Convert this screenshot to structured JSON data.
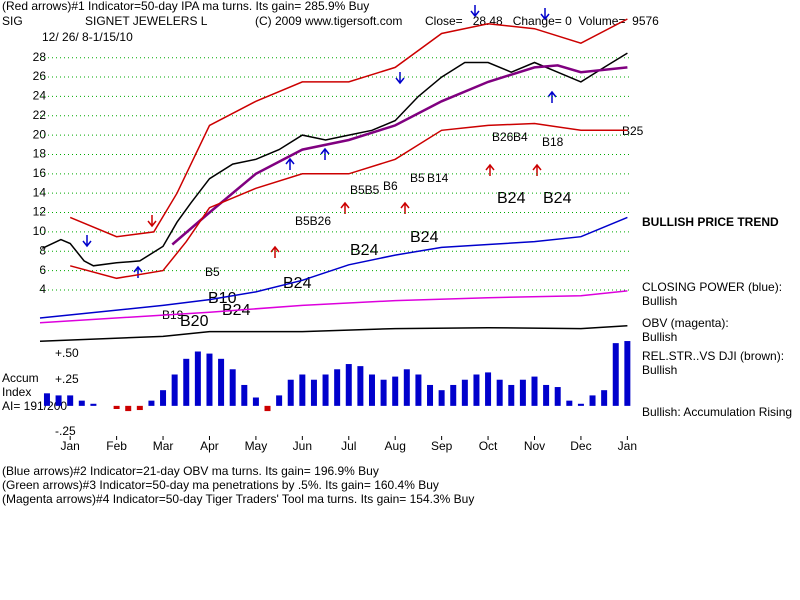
{
  "header": {
    "line1": "(Red arrows)#1 Indicator=50-day IPA ma turns. Its gain= 285.9% Buy",
    "symbol": "SIG",
    "dates": "12/ 26/ 8-1/15/10",
    "copyright": "(C) 2009 www.tigersoft.com",
    "quote": "Close=   28.48   Change= 0  Volume=  9576"
  },
  "side_labels": [
    "BULLISH PRICE TREND",
    "CLOSING POWER (blue):",
    "Bullish",
    "OBV (magenta):",
    "Bullish",
    "REL.STR..VS DJI (brown):",
    "Bullish",
    "Bullish: Accumulation Rising"
  ],
  "accum_labels": [
    "Accum",
    "Index",
    "AI= 191/200"
  ],
  "signals": [
    "B24",
    "B24",
    "B24",
    "B24",
    "B24",
    "B24",
    "B5",
    "B10",
    "B19",
    "B20",
    "B5B26",
    "B5B5",
    "B6",
    "B5",
    "B14",
    "B26",
    "B4",
    "B18",
    "B25"
  ],
  "footer": [
    "(Blue arrows)#2 Indicator=21-day OBV ma turns. Its gain= 196.9% Buy",
    "(Green arrows)#3 Indicator=50-day ma penetrations by .5%. Its gain= 160.4% Buy",
    "(Magenta arrows)#4 Indicator=50-day Tiger Traders' Tool ma turns. Its gain= 154.3% Buy"
  ],
  "chart_data": [
    {
      "type": "line",
      "title": "SIGNET JEWELERS L",
      "xlim": [
        -0.65,
        12.1
      ],
      "ylim": [
        -2,
        32
      ],
      "yticks": [
        4,
        6,
        8,
        10,
        12,
        14,
        16,
        18,
        20,
        22,
        24,
        26,
        28
      ],
      "grid": true,
      "series": [
        {
          "color": "#000000",
          "x": [
            -0.6,
            -0.2,
            0,
            0.3,
            0.5,
            1,
            1.5,
            2,
            2.3,
            2.6,
            3,
            3.5,
            4,
            4.5,
            5,
            5.5,
            6,
            6.5,
            7,
            7.5,
            8,
            8.5,
            9,
            9.5,
            10,
            10.5,
            11,
            11.5,
            12
          ],
          "values": [
            8.3,
            9.2,
            8.8,
            7,
            6.5,
            6.8,
            7,
            8.5,
            11,
            13,
            15.5,
            17,
            17.5,
            18.5,
            20,
            19.5,
            20,
            20.5,
            21.5,
            24,
            26,
            27.5,
            27.5,
            26.5,
            27.5,
            26.5,
            25.5,
            27,
            28.48
          ]
        },
        {
          "color": "#800080",
          "x": [
            2.2,
            3,
            4,
            5,
            6,
            7,
            8,
            9,
            10,
            10.5,
            11,
            12
          ],
          "values": [
            8.7,
            12,
            16,
            18.5,
            19.5,
            21,
            23.5,
            25.5,
            27,
            27.2,
            26.5,
            27
          ]
        },
        {
          "color": "#cc0000",
          "x": [
            0,
            1,
            1.8,
            2.3,
            3,
            4,
            5,
            6,
            7,
            8,
            9,
            10,
            11,
            12
          ],
          "values": [
            11.5,
            9.5,
            10,
            14,
            21,
            23.5,
            25.5,
            25.5,
            27,
            30.5,
            31.5,
            31,
            29.5,
            32
          ]
        },
        {
          "color": "#cc0000",
          "x": [
            0,
            1,
            2,
            2.5,
            3,
            4,
            5,
            6,
            7,
            8,
            9,
            10,
            11,
            12
          ],
          "values": [
            6.5,
            5.2,
            6,
            9,
            12.5,
            14.5,
            16,
            16,
            17.5,
            20.5,
            21,
            21.2,
            20.5,
            20.5
          ]
        },
        {
          "color": "#0000cc",
          "x": [
            -0.65,
            2,
            3,
            4,
            5,
            6,
            7,
            8,
            9,
            10,
            11,
            12
          ],
          "values": [
            1.1,
            2.4,
            3,
            3.8,
            5,
            6.6,
            7.6,
            8.4,
            8.7,
            9,
            9.5,
            11.5
          ]
        },
        {
          "color": "#dd00dd",
          "x": [
            -0.65,
            3,
            5,
            7,
            9,
            11,
            12
          ],
          "values": [
            0.6,
            1.7,
            2.4,
            2.9,
            3.2,
            3.4,
            3.9
          ]
        },
        {
          "color": "#000000",
          "x": [
            -0.65,
            2,
            3,
            5,
            7,
            9,
            11,
            12
          ],
          "values": [
            -1.3,
            -0.8,
            -0.3,
            -0.3,
            0,
            0.1,
            0,
            0.3
          ]
        }
      ]
    },
    {
      "type": "bar",
      "xlim": [
        -0.65,
        12.1
      ],
      "ylim": [
        -0.25,
        0.63
      ],
      "color": "#0000cc",
      "negative_color": "#cc0000",
      "yticks": [
        {
          "value": 0.5,
          "label": "+.50"
        },
        {
          "value": 0.25,
          "label": "+.25"
        },
        {
          "value": -0.25,
          "label": "-.25"
        }
      ],
      "xticks": [
        {
          "value": 0,
          "label": "Jan"
        },
        {
          "value": 1,
          "label": "Feb"
        },
        {
          "value": 2,
          "label": "Mar"
        },
        {
          "value": 3,
          "label": "Apr"
        },
        {
          "value": 4,
          "label": "May"
        },
        {
          "value": 5,
          "label": "Jun"
        },
        {
          "value": 6,
          "label": "Jul"
        },
        {
          "value": 7,
          "label": "Aug"
        },
        {
          "value": 8,
          "label": "Sep"
        },
        {
          "value": 9,
          "label": "Oct"
        },
        {
          "value": 10,
          "label": "Nov"
        },
        {
          "value": 11,
          "label": "Dec"
        },
        {
          "value": 12,
          "label": "Jan"
        }
      ],
      "x": [
        -0.5,
        -0.25,
        0,
        0.25,
        0.5,
        0.75,
        1,
        1.25,
        1.5,
        1.75,
        2,
        2.25,
        2.5,
        2.75,
        3,
        3.25,
        3.5,
        3.75,
        4,
        4.25,
        4.5,
        4.75,
        5,
        5.25,
        5.5,
        5.75,
        6,
        6.25,
        6.5,
        6.75,
        7,
        7.25,
        7.5,
        7.75,
        8,
        8.25,
        8.5,
        8.75,
        9,
        9.25,
        9.5,
        9.75,
        10,
        10.25,
        10.5,
        10.75,
        11,
        11.25,
        11.5,
        11.75,
        12
      ],
      "values": [
        0.12,
        0.1,
        0.1,
        0.05,
        0.02,
        0,
        -0.03,
        -0.05,
        -0.04,
        0.05,
        0.15,
        0.3,
        0.45,
        0.52,
        0.5,
        0.45,
        0.35,
        0.2,
        0.08,
        -0.05,
        0.1,
        0.25,
        0.3,
        0.25,
        0.3,
        0.35,
        0.4,
        0.38,
        0.3,
        0.25,
        0.28,
        0.35,
        0.3,
        0.2,
        0.15,
        0.2,
        0.25,
        0.3,
        0.32,
        0.25,
        0.2,
        0.25,
        0.28,
        0.2,
        0.18,
        0.05,
        0.02,
        0.1,
        0.15,
        0.6,
        0.62
      ]
    }
  ]
}
